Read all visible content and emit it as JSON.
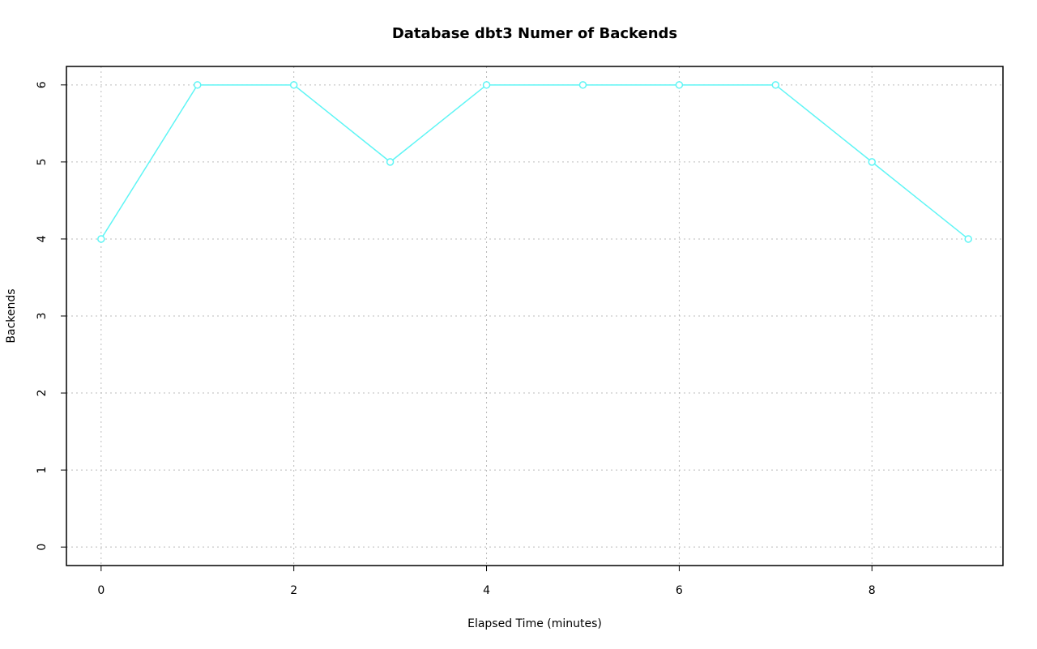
{
  "chart_data": {
    "type": "line",
    "title": "Database dbt3 Numer of Backends",
    "xlabel": "Elapsed Time (minutes)",
    "ylabel": "Backends",
    "x": [
      0,
      1,
      2,
      3,
      4,
      5,
      6,
      7,
      8,
      9
    ],
    "values": [
      4,
      6,
      6,
      5,
      6,
      6,
      6,
      6,
      5,
      4
    ],
    "color": "#5ff5f5",
    "xlim": [
      -0.36,
      9.36
    ],
    "xticks": [
      0,
      2,
      4,
      6,
      8
    ],
    "ylim": [
      -0.24,
      6.24
    ],
    "yticks": [
      0,
      1,
      2,
      3,
      4,
      5,
      6
    ],
    "grid": true
  }
}
